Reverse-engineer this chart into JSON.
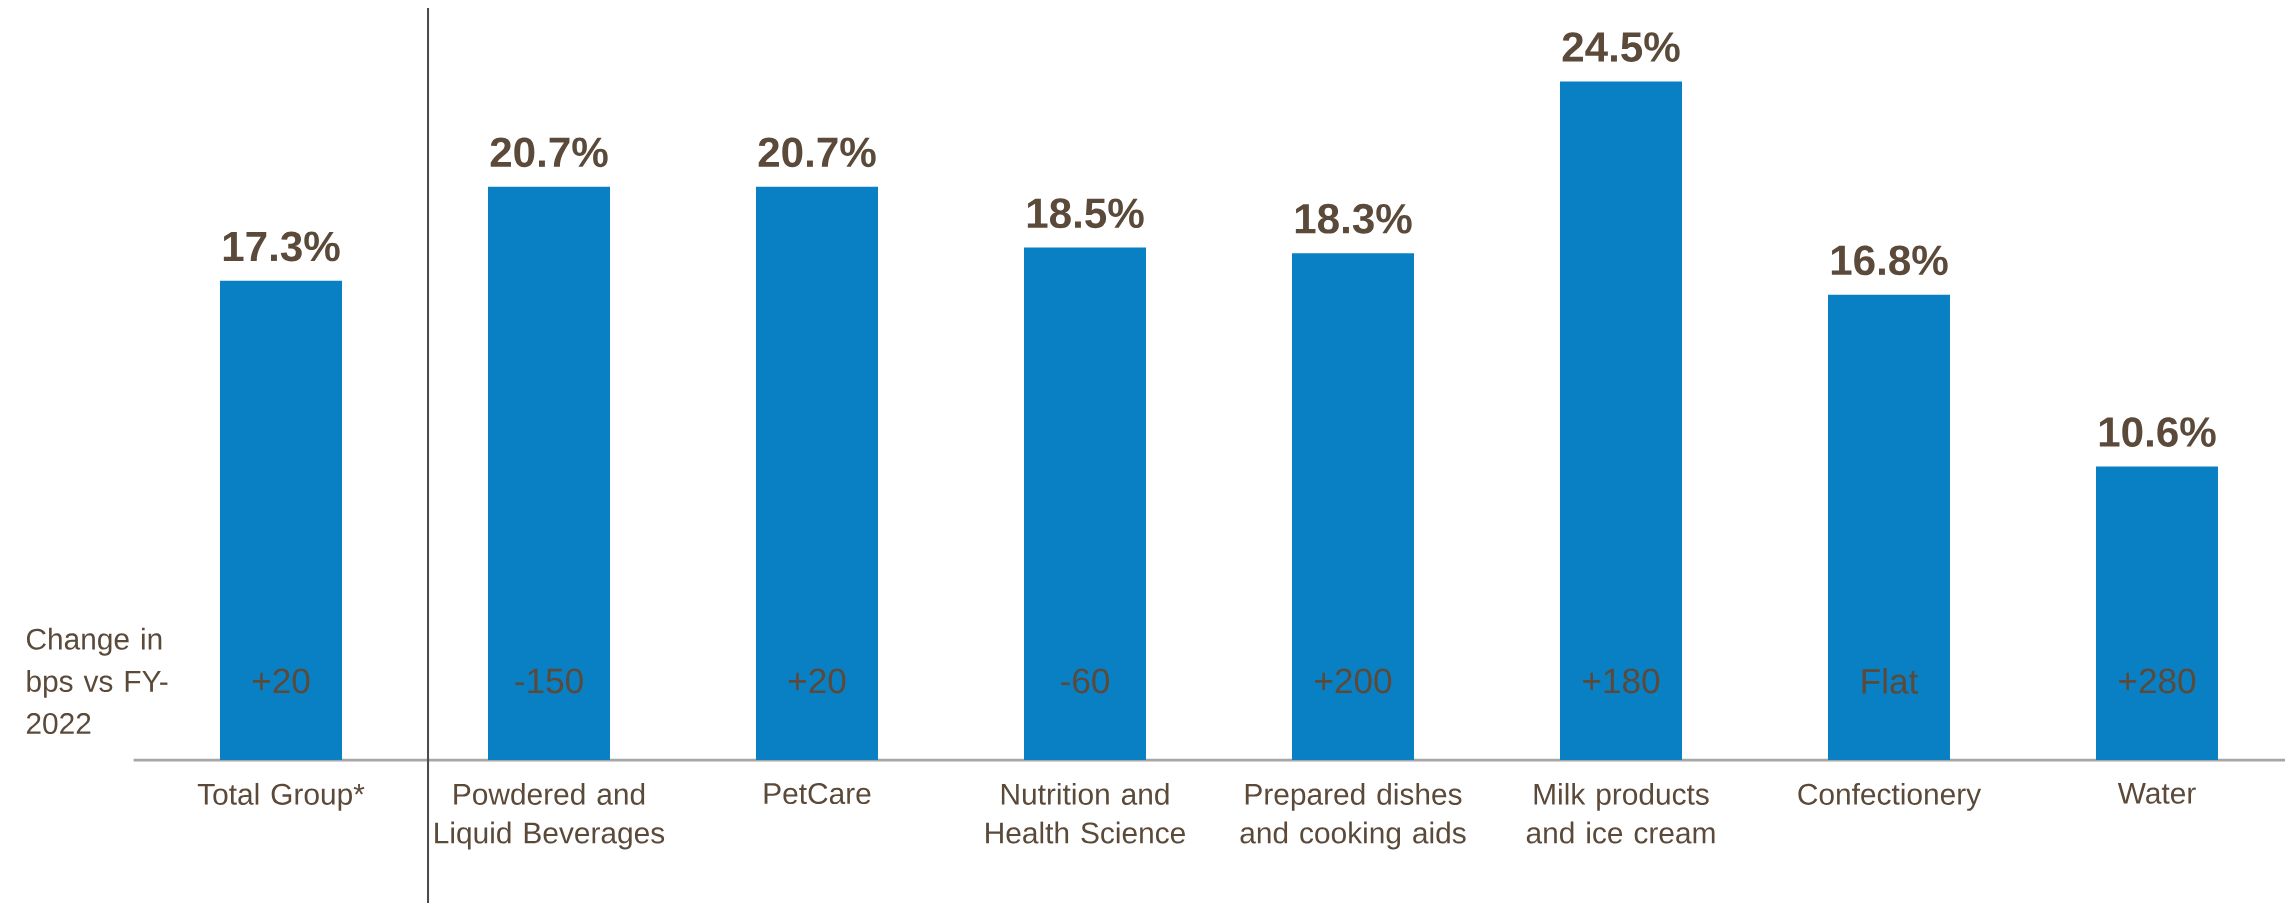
{
  "chart_data": {
    "type": "bar",
    "categories": [
      "Total Group*",
      "Powdered and Liquid Beverages",
      "PetCare",
      "Nutrition and Health Science",
      "Prepared dishes and cooking aids",
      "Milk products and ice cream",
      "Confectionery",
      "Water"
    ],
    "values": [
      17.3,
      20.7,
      20.7,
      18.5,
      18.3,
      24.5,
      16.8,
      10.6
    ],
    "value_labels": [
      "17.3%",
      "20.7%",
      "20.7%",
      "18.5%",
      "18.3%",
      "24.5%",
      "16.8%",
      "10.6%"
    ],
    "color": "#0a80c4",
    "annotations": [
      "Change in bps vs FY-2022",
      "+20",
      "-150",
      "+20",
      "-60",
      "+200",
      "+180",
      "Flat",
      "+280"
    ]
  }
}
